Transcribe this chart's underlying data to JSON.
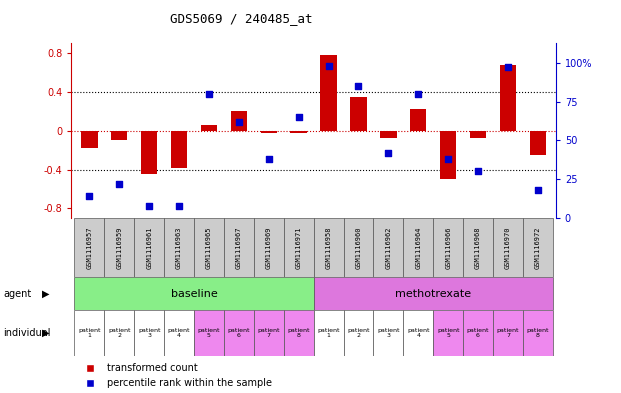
{
  "title": "GDS5069 / 240485_at",
  "samples": [
    "GSM1116957",
    "GSM1116959",
    "GSM1116961",
    "GSM1116963",
    "GSM1116965",
    "GSM1116967",
    "GSM1116969",
    "GSM1116971",
    "GSM1116958",
    "GSM1116960",
    "GSM1116962",
    "GSM1116964",
    "GSM1116966",
    "GSM1116968",
    "GSM1116970",
    "GSM1116972"
  ],
  "bar_values": [
    -0.18,
    -0.1,
    -0.45,
    -0.38,
    0.06,
    0.2,
    -0.02,
    -0.02,
    0.78,
    0.35,
    -0.08,
    0.22,
    -0.5,
    -0.08,
    0.68,
    -0.25
  ],
  "scatter_values": [
    14,
    22,
    8,
    8,
    80,
    62,
    38,
    65,
    98,
    85,
    42,
    80,
    38,
    30,
    97,
    18
  ],
  "bar_color": "#cc0000",
  "scatter_color": "#0000cc",
  "ylim_left": [
    -0.9,
    0.9
  ],
  "ylim_right": [
    0,
    112.5
  ],
  "yticks_left": [
    -0.8,
    -0.4,
    0.0,
    0.4,
    0.8
  ],
  "ytick_labels_left": [
    "-0.8",
    "-0.4",
    "0",
    "0.4",
    "0.8"
  ],
  "yticks_right": [
    0,
    25,
    50,
    75,
    100
  ],
  "ytick_labels_right": [
    "0",
    "25",
    "50",
    "75",
    "100%"
  ],
  "hlines_dotted": [
    -0.4,
    0.4
  ],
  "hline_zero_color": "#cc0000",
  "agent_labels": [
    "baseline",
    "methotrexate"
  ],
  "agent_colors": [
    "#88ee88",
    "#dd77dd"
  ],
  "individual_colors": [
    "#ffffff",
    "#ffffff",
    "#ffffff",
    "#ffffff",
    "#ee88ee",
    "#ee88ee",
    "#ee88ee",
    "#ee88ee",
    "#ffffff",
    "#ffffff",
    "#ffffff",
    "#ffffff",
    "#ee88ee",
    "#ee88ee",
    "#ee88ee",
    "#ee88ee"
  ],
  "individual_labels": [
    "patient\n1",
    "patient\n2",
    "patient\n3",
    "patient\n4",
    "patient\n5",
    "patient\n6",
    "patient\n7",
    "patient\n8",
    "patient\n1",
    "patient\n2",
    "patient\n3",
    "patient\n4",
    "patient\n5",
    "patient\n6",
    "patient\n7",
    "patient\n8"
  ],
  "legend_bar_label": "transformed count",
  "legend_scatter_label": "percentile rank within the sample",
  "bar_width": 0.55,
  "left_label_color": "#cc0000",
  "right_label_color": "#0000cc",
  "background_color": "#ffffff",
  "grid_color": "#000000"
}
